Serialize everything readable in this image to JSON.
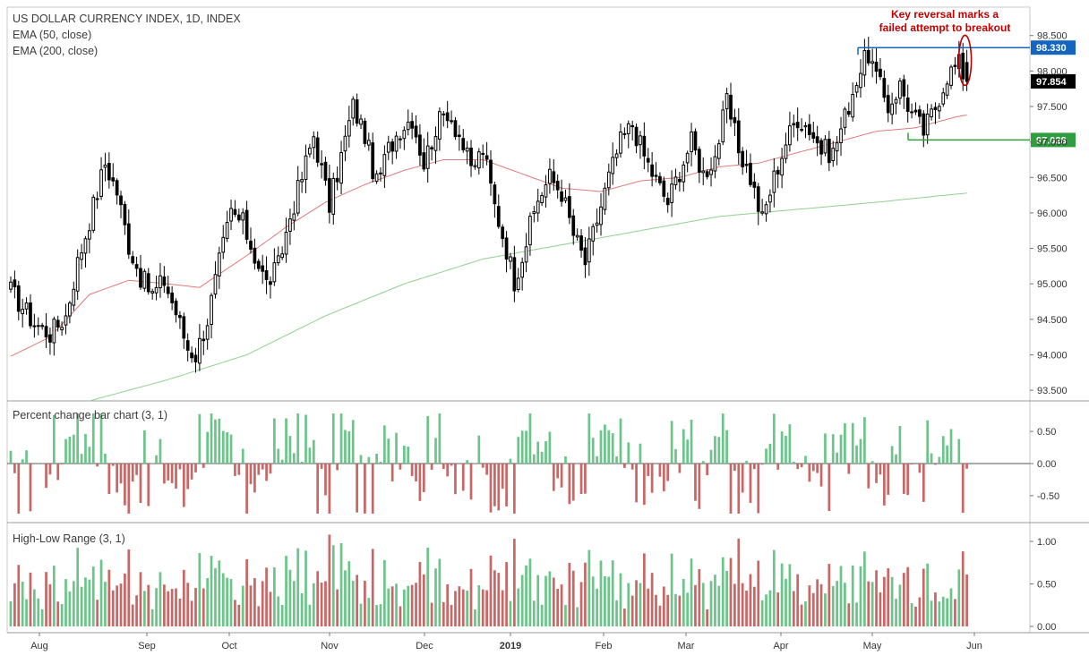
{
  "legend": {
    "title": "US DOLLAR CURRENCY INDEX, 1D, INDEX",
    "ema50": "EMA (50, close)",
    "ema200": "EMA (200, close)"
  },
  "annotation": {
    "line1": "Key reversal marks a",
    "line2": "failed attempt to breakout"
  },
  "colors": {
    "up": "#2e7d32",
    "down": "#000000",
    "ema50": "#e07a7a",
    "ema200": "#8fd18f",
    "pos_bar": "#6cc48a",
    "neg_bar": "#c96666",
    "resistance": "#1565c0",
    "support": "#2e9e3e",
    "current": "#000000",
    "annotation": "#c00000"
  },
  "chart_data": [
    {
      "type": "candlestick",
      "title": "US DOLLAR CURRENCY INDEX, 1D, INDEX",
      "x_tick_labels": [
        "Aug",
        "Sep",
        "Oct",
        "Nov",
        "Dec",
        "2019",
        "Feb",
        "Mar",
        "Apr",
        "May",
        "Jun"
      ],
      "y_tick_labels": [
        "98.500",
        "98.000",
        "97.500",
        "97.000",
        "96.500",
        "96.000",
        "95.500",
        "95.000",
        "94.500",
        "94.000",
        "93.500"
      ],
      "ylim": [
        93.35,
        98.9
      ],
      "horizontal_levels": [
        {
          "label": "98.330",
          "value": 98.33,
          "role": "resistance"
        },
        {
          "label": "97.854",
          "value": 97.854,
          "role": "current"
        },
        {
          "label": "97.028",
          "value": 97.028,
          "role": "support"
        }
      ],
      "anchors": [
        [
          0,
          94.9
        ],
        [
          6,
          94.45
        ],
        [
          10,
          94.3
        ],
        [
          14,
          94.55
        ],
        [
          17,
          95.3
        ],
        [
          21,
          96.1
        ],
        [
          24,
          96.7
        ],
        [
          27,
          96.3
        ],
        [
          30,
          95.55
        ],
        [
          33,
          95.1
        ],
        [
          36,
          94.85
        ],
        [
          39,
          95.05
        ],
        [
          42,
          94.6
        ],
        [
          45,
          94.1
        ],
        [
          47,
          94.0
        ],
        [
          50,
          94.5
        ],
        [
          53,
          95.3
        ],
        [
          56,
          96.0
        ],
        [
          59,
          95.85
        ],
        [
          62,
          95.4
        ],
        [
          65,
          95.0
        ],
        [
          68,
          95.25
        ],
        [
          71,
          95.95
        ],
        [
          74,
          96.5
        ],
        [
          77,
          97.1
        ],
        [
          79,
          96.6
        ],
        [
          81,
          96.1
        ],
        [
          84,
          96.8
        ],
        [
          87,
          97.5
        ],
        [
          90,
          97.1
        ],
        [
          93,
          96.4
        ],
        [
          96,
          96.9
        ],
        [
          99,
          97.2
        ],
        [
          102,
          97.35
        ],
        [
          105,
          96.7
        ],
        [
          108,
          97.2
        ],
        [
          111,
          97.45
        ],
        [
          114,
          97.1
        ],
        [
          117,
          96.6
        ],
        [
          120,
          96.9
        ],
        [
          123,
          96.1
        ],
        [
          126,
          95.5
        ],
        [
          128,
          95.05
        ],
        [
          131,
          95.6
        ],
        [
          134,
          96.2
        ],
        [
          137,
          96.5
        ],
        [
          140,
          96.3
        ],
        [
          143,
          95.7
        ],
        [
          146,
          95.3
        ],
        [
          149,
          95.9
        ],
        [
          152,
          96.5
        ],
        [
          155,
          97.0
        ],
        [
          158,
          97.25
        ],
        [
          161,
          96.8
        ],
        [
          164,
          96.45
        ],
        [
          167,
          96.15
        ],
        [
          170,
          96.6
        ],
        [
          173,
          97.0
        ],
        [
          176,
          96.55
        ],
        [
          179,
          96.8
        ],
        [
          182,
          97.55
        ],
        [
          185,
          96.9
        ],
        [
          188,
          96.5
        ],
        [
          191,
          95.9
        ],
        [
          194,
          96.5
        ],
        [
          197,
          97.0
        ],
        [
          200,
          97.35
        ],
        [
          203,
          97.2
        ],
        [
          206,
          96.9
        ],
        [
          209,
          96.85
        ],
        [
          212,
          97.35
        ],
        [
          215,
          97.9
        ],
        [
          218,
          98.25
        ],
        [
          220,
          97.9
        ],
        [
          223,
          97.5
        ],
        [
          226,
          97.8
        ],
        [
          229,
          97.4
        ],
        [
          232,
          97.15
        ],
        [
          235,
          97.5
        ],
        [
          238,
          97.95
        ],
        [
          241,
          98.1
        ],
        [
          243,
          97.854
        ]
      ],
      "ema50_anchors": [
        [
          0,
          93.98
        ],
        [
          10,
          94.25
        ],
        [
          20,
          94.85
        ],
        [
          30,
          95.05
        ],
        [
          40,
          95.0
        ],
        [
          48,
          94.95
        ],
        [
          60,
          95.4
        ],
        [
          70,
          95.8
        ],
        [
          80,
          96.15
        ],
        [
          90,
          96.4
        ],
        [
          100,
          96.6
        ],
        [
          110,
          96.75
        ],
        [
          120,
          96.75
        ],
        [
          130,
          96.55
        ],
        [
          140,
          96.35
        ],
        [
          150,
          96.3
        ],
        [
          160,
          96.45
        ],
        [
          170,
          96.5
        ],
        [
          180,
          96.65
        ],
        [
          190,
          96.7
        ],
        [
          200,
          96.85
        ],
        [
          210,
          97.0
        ],
        [
          220,
          97.15
        ],
        [
          230,
          97.2
        ],
        [
          240,
          97.35
        ],
        [
          243,
          97.38
        ]
      ],
      "ema200_anchors": [
        [
          20,
          93.35
        ],
        [
          40,
          93.65
        ],
        [
          60,
          94.0
        ],
        [
          80,
          94.55
        ],
        [
          100,
          95.0
        ],
        [
          120,
          95.35
        ],
        [
          140,
          95.55
        ],
        [
          160,
          95.75
        ],
        [
          180,
          95.95
        ],
        [
          200,
          96.05
        ],
        [
          220,
          96.15
        ],
        [
          243,
          96.28
        ]
      ]
    },
    {
      "type": "bar",
      "title": "Percent change bar chart (3, 1)",
      "y_tick_labels": [
        "0.50",
        "0.00",
        "-0.50"
      ],
      "ylim": [
        -0.92,
        0.92
      ]
    },
    {
      "type": "bar",
      "title": "High-Low Range (3, 1)",
      "y_tick_labels": [
        "1.00",
        "0.50",
        "0.00"
      ],
      "ylim": [
        -0.02,
        1.2
      ]
    }
  ]
}
